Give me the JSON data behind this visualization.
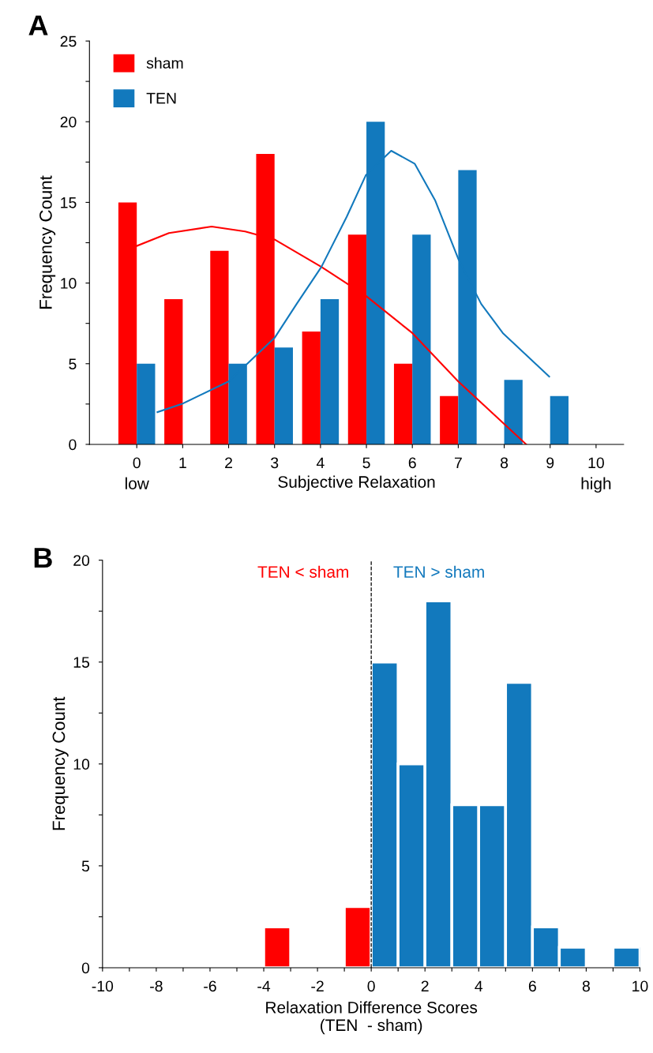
{
  "chart_data": [
    {
      "type": "bar",
      "title": "A",
      "ylabel": "Frequency Count",
      "xlabel": "Subjective Relaxation",
      "x": [
        0,
        1,
        2,
        3,
        4,
        5,
        6,
        7,
        8,
        9,
        10
      ],
      "series": [
        {
          "name": "sham",
          "color": "#ff0000",
          "values": [
            15,
            9,
            12,
            18,
            7,
            13,
            5,
            3,
            0,
            0,
            0
          ]
        },
        {
          "name": "TEN",
          "color": "#1279bd",
          "values": [
            5,
            0,
            5,
            6,
            9,
            20,
            13,
            17,
            4,
            3,
            0
          ]
        },
        {
          "type": "line",
          "color": "#ff0000",
          "x": [
            0,
            0.7,
            1.63,
            2.36,
            3.0,
            4.02,
            4.99,
            6.0,
            7.0,
            8.48
          ],
          "values": [
            12.3,
            13.1,
            13.5,
            13.2,
            12.7,
            11.0,
            9.2,
            6.9,
            3.9,
            0
          ]
        },
        {
          "type": "line",
          "color": "#1279bd",
          "x": [
            0.45,
            0.98,
            2.0,
            3.0,
            3.48,
            4.02,
            4.57,
            4.99,
            5.54,
            6.05,
            6.5,
            7.0,
            7.5,
            7.97,
            8.98
          ],
          "values": [
            2.0,
            2.5,
            3.9,
            6.6,
            8.7,
            11.0,
            14.1,
            16.7,
            18.2,
            17.4,
            15.1,
            11.5,
            8.7,
            6.9,
            4.2
          ]
        }
      ],
      "annotations": [
        "low",
        "high"
      ],
      "xlim": [
        -1.03,
        10.6
      ],
      "xticks": [
        0,
        1,
        2,
        3,
        4,
        5,
        6,
        7,
        8,
        9,
        10
      ],
      "ylim": [
        0,
        25
      ],
      "yticks": [
        0,
        {
          "value": 2.5,
          "label": null
        },
        5,
        {
          "value": 7.5,
          "label": null
        },
        10,
        {
          "value": 12.5,
          "label": null
        },
        15,
        {
          "value": 17.5,
          "label": null
        },
        20,
        {
          "value": 22.5,
          "label": null
        },
        25
      ],
      "legend": "top left",
      "grid": false
    },
    {
      "type": "histogram",
      "title": "B",
      "ylabel": "Frequency Count",
      "xlabel": "Relaxation Difference Scores\n(TEN  - sham)",
      "bins": [
        -10,
        -9,
        -8,
        -7,
        -6,
        -5,
        -4,
        -3,
        -2,
        -1,
        0,
        1,
        2,
        3,
        4,
        5,
        6,
        7,
        8,
        9,
        10
      ],
      "values": [
        0,
        0,
        0,
        0,
        0,
        0,
        2,
        0,
        0,
        3,
        15,
        10,
        18,
        8,
        8,
        14,
        2,
        1,
        0,
        1
      ],
      "colors": [
        "#ff0000",
        "#ff0000",
        "#ff0000",
        "#ff0000",
        "#ff0000",
        "#ff0000",
        "#ff0000",
        "#ff0000",
        "#ff0000",
        "#ff0000",
        "#1279bd",
        "#1279bd",
        "#1279bd",
        "#1279bd",
        "#1279bd",
        "#1279bd",
        "#1279bd",
        "#1279bd",
        "#1279bd",
        "#1279bd"
      ],
      "ref_lines": [
        {
          "axis": "x",
          "value": 0,
          "color": "#000000",
          "line_style": "dashed"
        }
      ],
      "annotations": [
        "TEN < sham",
        "TEN > sham"
      ],
      "xlim": [
        -10,
        10
      ],
      "xticks": [
        -10,
        {
          "value": -9,
          "label": null
        },
        -8,
        {
          "value": -7,
          "label": null
        },
        -6,
        {
          "value": -5,
          "label": null
        },
        -4,
        {
          "value": -3,
          "label": null
        },
        -2,
        {
          "value": -1,
          "label": null
        },
        0,
        {
          "value": 1,
          "label": null
        },
        2,
        {
          "value": 3,
          "label": null
        },
        4,
        {
          "value": 5,
          "label": null
        },
        6,
        {
          "value": 7,
          "label": null
        },
        8,
        {
          "value": 9,
          "label": null
        },
        10
      ],
      "ylim": [
        0,
        20
      ],
      "yticks": [
        0,
        {
          "value": 2.5,
          "label": null
        },
        5,
        {
          "value": 7.5,
          "label": null
        },
        10,
        {
          "value": 12.5,
          "label": null
        },
        15,
        {
          "value": 17.5,
          "label": null
        },
        20
      ],
      "grid": false
    }
  ]
}
